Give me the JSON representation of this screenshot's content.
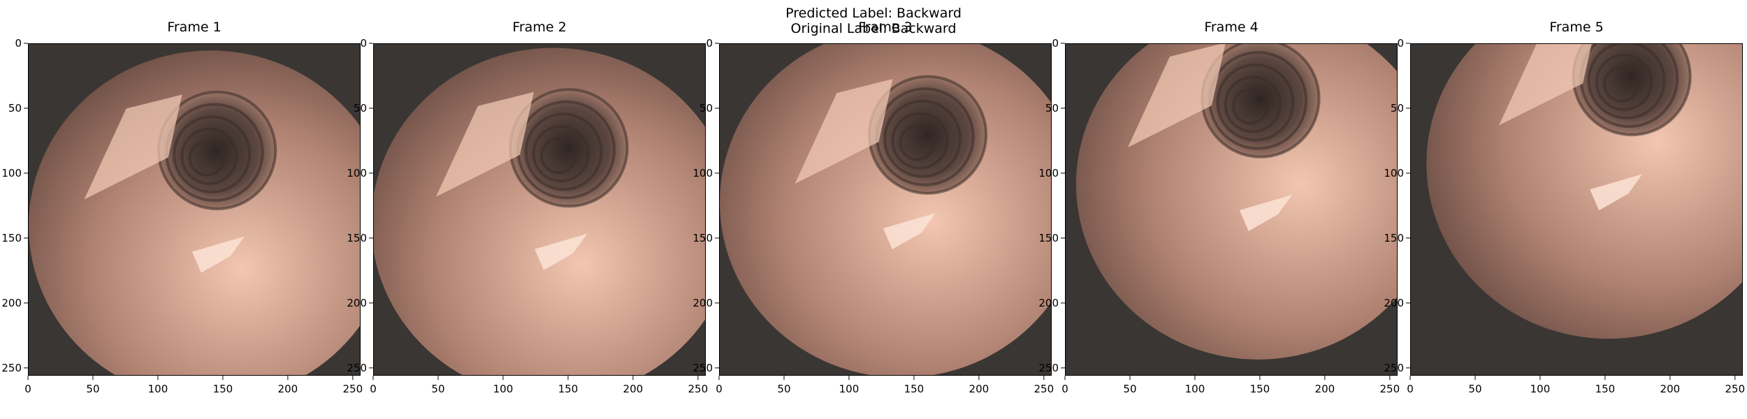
{
  "figure": {
    "predicted_label": "Predicted Label: Backward",
    "original_label": "Original Label: Backward"
  },
  "axis": {
    "x_ticks": [
      "0",
      "50",
      "100",
      "150",
      "200",
      "250"
    ],
    "y_ticks": [
      "0",
      "50",
      "100",
      "150",
      "200",
      "250"
    ],
    "x_tick_values": [
      0,
      50,
      100,
      150,
      200,
      250
    ],
    "y_tick_values": [
      0,
      50,
      100,
      150,
      200,
      250
    ],
    "xlim": [
      0,
      256
    ],
    "ylim": [
      256,
      0
    ]
  },
  "frames": [
    {
      "title": "Frame 1",
      "lumen_x": 145,
      "lumen_y": 82,
      "highlight_x": 150,
      "highlight_y": 160
    },
    {
      "title": "Frame 2",
      "lumen_x": 150,
      "lumen_y": 80,
      "highlight_x": 148,
      "highlight_y": 158
    },
    {
      "title": "Frame 3",
      "lumen_x": 160,
      "lumen_y": 70,
      "highlight_x": 150,
      "highlight_y": 142
    },
    {
      "title": "Frame 4",
      "lumen_x": 150,
      "lumen_y": 42,
      "highlight_x": 158,
      "highlight_y": 128
    },
    {
      "title": "Frame 5",
      "lumen_x": 170,
      "lumen_y": 25,
      "highlight_x": 162,
      "highlight_y": 112
    }
  ],
  "colors": {
    "background": "#3a3633",
    "tissue_light": "#f2c6b0",
    "tissue_mid": "#b08272",
    "tissue_dark": "#5a4038",
    "lumen": "#2e2623"
  }
}
